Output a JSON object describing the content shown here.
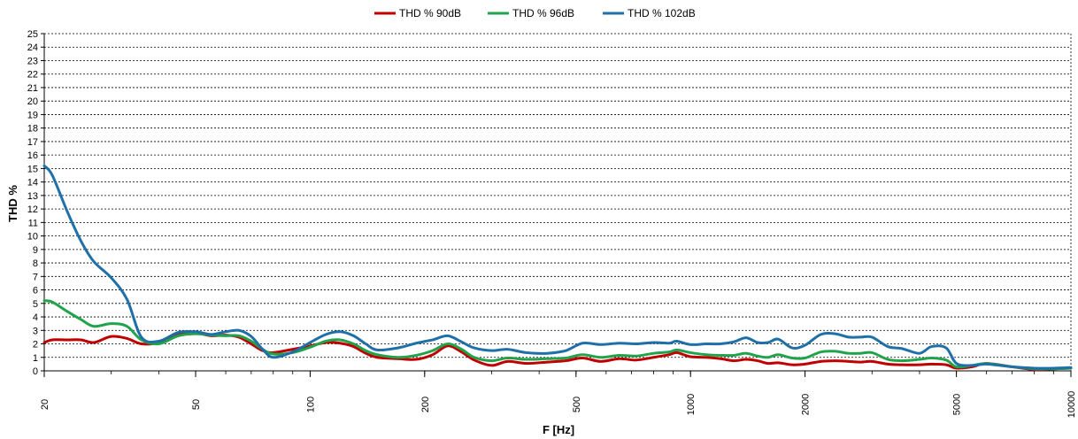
{
  "chart_data": {
    "type": "line",
    "title": "",
    "xlabel": "F [Hz]",
    "ylabel": "THD %",
    "x_scale": "log",
    "xlim": [
      20,
      10000
    ],
    "ylim": [
      0,
      25
    ],
    "grid": "horizontal dashed",
    "legend_position": "top",
    "y_ticks": [
      "0",
      "1",
      "2",
      "3",
      "4",
      "5",
      "6",
      "7",
      "8",
      "9",
      "10",
      "11",
      "12",
      "13",
      "14",
      "15",
      "16",
      "17",
      "18",
      "19",
      "20",
      "21",
      "22",
      "23",
      "24",
      "25"
    ],
    "x_ticks": [
      {
        "value": 20,
        "label": "20"
      },
      {
        "value": 50,
        "label": "50"
      },
      {
        "value": 100,
        "label": "100"
      },
      {
        "value": 200,
        "label": "200"
      },
      {
        "value": 500,
        "label": "500"
      },
      {
        "value": 1000,
        "label": "1000"
      },
      {
        "value": 2000,
        "label": "2000"
      },
      {
        "value": 5000,
        "label": "5000"
      },
      {
        "value": 10000,
        "label": "10000"
      }
    ],
    "series": [
      {
        "name": "THD % 90dB",
        "color": "#c00000",
        "points": [
          [
            20,
            2.1
          ],
          [
            21,
            2.3
          ],
          [
            23,
            2.3
          ],
          [
            25,
            2.3
          ],
          [
            27,
            2.1
          ],
          [
            30,
            2.55
          ],
          [
            33,
            2.4
          ],
          [
            36,
            2.0
          ],
          [
            40,
            2.1
          ],
          [
            45,
            2.7
          ],
          [
            50,
            2.8
          ],
          [
            55,
            2.6
          ],
          [
            60,
            2.65
          ],
          [
            65,
            2.5
          ],
          [
            70,
            2.0
          ],
          [
            75,
            1.5
          ],
          [
            80,
            1.35
          ],
          [
            90,
            1.6
          ],
          [
            100,
            1.85
          ],
          [
            110,
            2.1
          ],
          [
            120,
            2.05
          ],
          [
            130,
            1.8
          ],
          [
            140,
            1.3
          ],
          [
            150,
            1.0
          ],
          [
            170,
            0.9
          ],
          [
            190,
            0.85
          ],
          [
            210,
            1.2
          ],
          [
            230,
            1.85
          ],
          [
            250,
            1.4
          ],
          [
            270,
            0.8
          ],
          [
            300,
            0.4
          ],
          [
            330,
            0.7
          ],
          [
            370,
            0.55
          ],
          [
            420,
            0.65
          ],
          [
            470,
            0.75
          ],
          [
            520,
            0.95
          ],
          [
            580,
            0.7
          ],
          [
            650,
            0.9
          ],
          [
            720,
            0.8
          ],
          [
            800,
            1.0
          ],
          [
            880,
            1.2
          ],
          [
            920,
            1.35
          ],
          [
            1000,
            1.05
          ],
          [
            1100,
            1.0
          ],
          [
            1200,
            0.9
          ],
          [
            1300,
            0.75
          ],
          [
            1400,
            0.85
          ],
          [
            1500,
            0.75
          ],
          [
            1600,
            0.55
          ],
          [
            1700,
            0.6
          ],
          [
            1850,
            0.45
          ],
          [
            2000,
            0.5
          ],
          [
            2200,
            0.7
          ],
          [
            2400,
            0.75
          ],
          [
            2600,
            0.7
          ],
          [
            2800,
            0.65
          ],
          [
            3000,
            0.7
          ],
          [
            3300,
            0.5
          ],
          [
            3600,
            0.45
          ],
          [
            4000,
            0.45
          ],
          [
            4300,
            0.5
          ],
          [
            4700,
            0.45
          ],
          [
            5000,
            0.2
          ],
          [
            5500,
            0.3
          ],
          [
            6000,
            0.55
          ],
          [
            7000,
            0.3
          ],
          [
            8000,
            0.1
          ],
          [
            9000,
            0.15
          ],
          [
            10000,
            0.2
          ]
        ]
      },
      {
        "name": "THD % 96dB",
        "color": "#21a34b",
        "points": [
          [
            20,
            5.2
          ],
          [
            21,
            5.1
          ],
          [
            23,
            4.4
          ],
          [
            25,
            3.8
          ],
          [
            27,
            3.3
          ],
          [
            30,
            3.5
          ],
          [
            33,
            3.3
          ],
          [
            36,
            2.3
          ],
          [
            40,
            2.0
          ],
          [
            45,
            2.6
          ],
          [
            50,
            2.75
          ],
          [
            55,
            2.65
          ],
          [
            60,
            2.6
          ],
          [
            65,
            2.6
          ],
          [
            70,
            2.2
          ],
          [
            75,
            1.6
          ],
          [
            80,
            1.25
          ],
          [
            90,
            1.35
          ],
          [
            100,
            1.75
          ],
          [
            110,
            2.2
          ],
          [
            120,
            2.3
          ],
          [
            130,
            2.0
          ],
          [
            140,
            1.5
          ],
          [
            150,
            1.2
          ],
          [
            170,
            1.0
          ],
          [
            190,
            1.15
          ],
          [
            210,
            1.5
          ],
          [
            230,
            2.0
          ],
          [
            250,
            1.6
          ],
          [
            270,
            1.0
          ],
          [
            300,
            0.75
          ],
          [
            330,
            0.95
          ],
          [
            370,
            0.85
          ],
          [
            420,
            0.9
          ],
          [
            470,
            0.95
          ],
          [
            520,
            1.2
          ],
          [
            580,
            1.0
          ],
          [
            650,
            1.15
          ],
          [
            720,
            1.1
          ],
          [
            800,
            1.3
          ],
          [
            880,
            1.4
          ],
          [
            920,
            1.55
          ],
          [
            1000,
            1.35
          ],
          [
            1100,
            1.2
          ],
          [
            1200,
            1.15
          ],
          [
            1300,
            1.15
          ],
          [
            1400,
            1.3
          ],
          [
            1500,
            1.1
          ],
          [
            1600,
            1.0
          ],
          [
            1700,
            1.2
          ],
          [
            1850,
            0.95
          ],
          [
            2000,
            0.95
          ],
          [
            2200,
            1.4
          ],
          [
            2400,
            1.45
          ],
          [
            2600,
            1.3
          ],
          [
            2800,
            1.3
          ],
          [
            3000,
            1.35
          ],
          [
            3300,
            0.85
          ],
          [
            3600,
            0.75
          ],
          [
            4000,
            0.85
          ],
          [
            4300,
            0.95
          ],
          [
            4700,
            0.8
          ],
          [
            5000,
            0.3
          ],
          [
            5500,
            0.4
          ],
          [
            6000,
            0.55
          ],
          [
            7000,
            0.3
          ],
          [
            8000,
            0.15
          ],
          [
            9000,
            0.15
          ],
          [
            10000,
            0.2
          ]
        ]
      },
      {
        "name": "THD % 102dB",
        "color": "#1f6fa9",
        "points": [
          [
            20,
            15.2
          ],
          [
            21,
            14.5
          ],
          [
            23,
            11.8
          ],
          [
            25,
            9.6
          ],
          [
            27,
            8.1
          ],
          [
            30,
            6.9
          ],
          [
            33,
            5.3
          ],
          [
            36,
            2.5
          ],
          [
            40,
            2.2
          ],
          [
            45,
            2.85
          ],
          [
            50,
            2.9
          ],
          [
            55,
            2.7
          ],
          [
            60,
            2.9
          ],
          [
            65,
            3.0
          ],
          [
            70,
            2.55
          ],
          [
            75,
            1.6
          ],
          [
            80,
            1.0
          ],
          [
            90,
            1.4
          ],
          [
            100,
            2.1
          ],
          [
            110,
            2.7
          ],
          [
            120,
            2.9
          ],
          [
            130,
            2.6
          ],
          [
            140,
            2.0
          ],
          [
            150,
            1.55
          ],
          [
            170,
            1.7
          ],
          [
            190,
            2.05
          ],
          [
            210,
            2.3
          ],
          [
            230,
            2.6
          ],
          [
            250,
            2.15
          ],
          [
            270,
            1.7
          ],
          [
            300,
            1.5
          ],
          [
            330,
            1.6
          ],
          [
            370,
            1.35
          ],
          [
            420,
            1.3
          ],
          [
            470,
            1.5
          ],
          [
            520,
            2.05
          ],
          [
            580,
            1.95
          ],
          [
            650,
            2.05
          ],
          [
            720,
            2.0
          ],
          [
            800,
            2.1
          ],
          [
            880,
            2.05
          ],
          [
            920,
            2.2
          ],
          [
            1000,
            1.95
          ],
          [
            1100,
            2.0
          ],
          [
            1200,
            2.0
          ],
          [
            1300,
            2.15
          ],
          [
            1400,
            2.45
          ],
          [
            1500,
            2.1
          ],
          [
            1600,
            2.1
          ],
          [
            1700,
            2.35
          ],
          [
            1850,
            1.7
          ],
          [
            2000,
            1.9
          ],
          [
            2200,
            2.7
          ],
          [
            2400,
            2.75
          ],
          [
            2600,
            2.5
          ],
          [
            2800,
            2.5
          ],
          [
            3000,
            2.5
          ],
          [
            3300,
            1.8
          ],
          [
            3600,
            1.65
          ],
          [
            4000,
            1.3
          ],
          [
            4300,
            1.8
          ],
          [
            4700,
            1.7
          ],
          [
            5000,
            0.55
          ],
          [
            5500,
            0.4
          ],
          [
            6000,
            0.5
          ],
          [
            7000,
            0.3
          ],
          [
            8000,
            0.2
          ],
          [
            9000,
            0.2
          ],
          [
            10000,
            0.25
          ]
        ]
      }
    ]
  }
}
